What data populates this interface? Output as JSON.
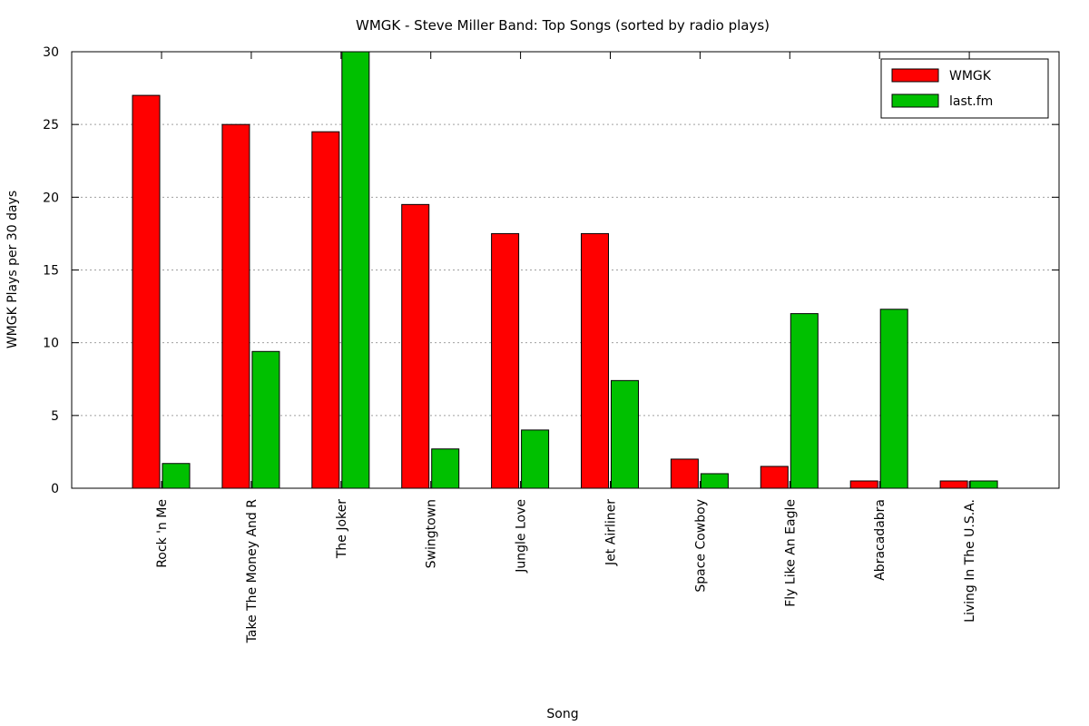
{
  "chart_data": {
    "type": "bar",
    "title": "WMGK - Steve Miller Band: Top Songs (sorted by radio plays)",
    "xlabel": "Song",
    "ylabel": "WMGK Plays per 30 days",
    "ylim": [
      0,
      30
    ],
    "yticks": [
      "0",
      "5",
      "10",
      "15",
      "20",
      "25",
      "30"
    ],
    "grid": "horizontal dotted",
    "legend_position": "top-right",
    "categories": [
      "Rock 'n Me",
      "Take The Money And R",
      "The Joker",
      "Swingtown",
      "Jungle Love",
      "Jet Airliner",
      "Space Cowboy",
      "Fly Like An Eagle",
      "Abracadabra",
      "Living In The U.S.A."
    ],
    "series": [
      {
        "name": "WMGK",
        "color": "#ff0000",
        "values": [
          27,
          25,
          24.5,
          19.5,
          17.5,
          17.5,
          2,
          1.5,
          0.5,
          0.5
        ]
      },
      {
        "name": "last.fm",
        "color": "#00c000",
        "values": [
          1.7,
          9.4,
          30,
          2.7,
          4,
          7.4,
          1,
          12,
          12.3,
          0.5
        ]
      }
    ]
  }
}
